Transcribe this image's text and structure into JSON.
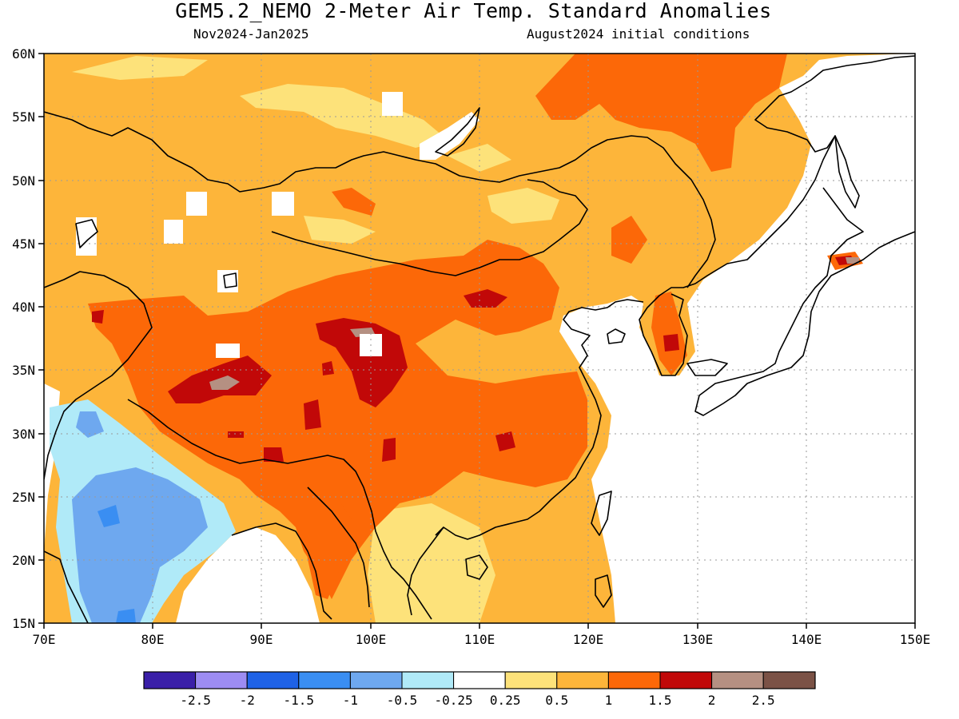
{
  "title": "GEM5.2_NEMO 2-Meter Air Temp. Standard Anomalies",
  "subtitle_left": "Nov2024-Jan2025",
  "subtitle_right": "August2024 initial conditions",
  "map": {
    "lon_range": [
      70,
      150
    ],
    "lat_range": [
      15,
      60
    ],
    "lon_ticks": [
      "70E",
      "80E",
      "90E",
      "100E",
      "110E",
      "120E",
      "130E",
      "140E",
      "150E"
    ],
    "lat_ticks": [
      "60N",
      "55N",
      "50N",
      "45N",
      "40N",
      "35N",
      "30N",
      "25N",
      "20N",
      "15N"
    ],
    "gridlines": "dotted"
  },
  "colorbar": {
    "tick_labels": [
      "-2.5",
      "-2",
      "-1.5",
      "-1",
      "-0.5",
      "-0.25",
      "0.25",
      "0.5",
      "1",
      "1.5",
      "2",
      "2.5"
    ],
    "colors": [
      "#3a1fa8",
      "#9d8cf2",
      "#1f62e6",
      "#3a8ef2",
      "#6ea8ef",
      "#b0eaf8",
      "#ffffff",
      "#fde27a",
      "#fdb53a",
      "#fc6808",
      "#c10808",
      "#b59082",
      "#7b5246"
    ]
  }
}
